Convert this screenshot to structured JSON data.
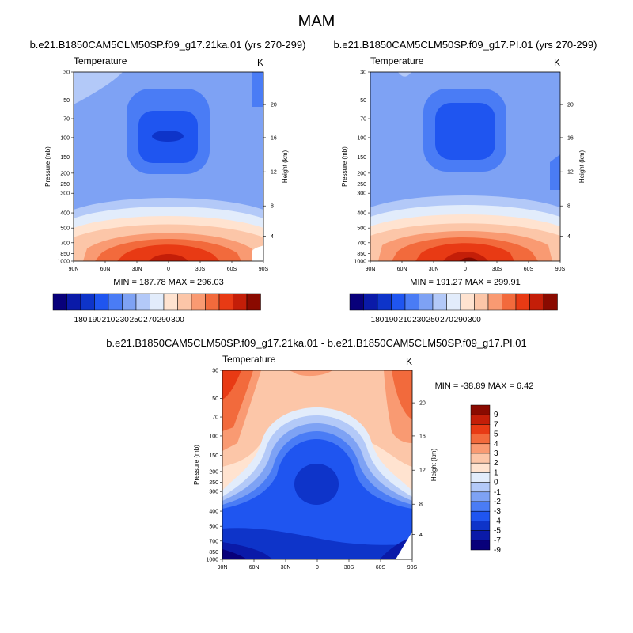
{
  "figure": {
    "main_title": "MAM"
  },
  "palettes": {
    "abs": [
      "#08007a",
      "#0a1aa8",
      "#0e34c9",
      "#1f55f0",
      "#4a7cf5",
      "#7ea2f4",
      "#b3c9f8",
      "#e2ecfb",
      "#ffe3d0",
      "#fcc6a8",
      "#f99a72",
      "#f26a3c",
      "#e83a14",
      "#c41e08",
      "#8a0a00"
    ],
    "diff": [
      "#08007a",
      "#0a1aa8",
      "#0e34c9",
      "#1f55f0",
      "#4a7cf5",
      "#7ea2f4",
      "#b3c9f8",
      "#e2ecfb",
      "#ffe3d0",
      "#fcc6a8",
      "#f99a72",
      "#f26a3c",
      "#e83a14",
      "#c41e08",
      "#8a0a00"
    ]
  },
  "chart_data": [
    {
      "type": "heatmap",
      "id": "panel1",
      "title": "b.e21.B1850CAM5CLM50SP.f09_g17.21ka.01 (yrs 270-299)",
      "left_label": "Temperature",
      "units": "K",
      "xlabel": "",
      "ylabel": "Pressure (mb)",
      "right_axis_label": "Height (km)",
      "x_ticks": [
        "90N",
        "60N",
        "30N",
        "0",
        "30S",
        "60S",
        "90S"
      ],
      "y_ticks": [
        "30",
        "50",
        "70",
        "100",
        "150",
        "200",
        "250",
        "300",
        "400",
        "500",
        "700",
        "850",
        "1000"
      ],
      "height_ticks": [
        "20",
        "16",
        "12",
        "8",
        "4"
      ],
      "stats": "MIN = 187.78   MAX = 296.03",
      "colorbar_labels": [
        "180",
        "190",
        "210",
        "230",
        "250",
        "270",
        "290",
        "300"
      ],
      "value_range": [
        187.78,
        296.03
      ],
      "colormap": "blue-white-red"
    },
    {
      "type": "heatmap",
      "id": "panel2",
      "title": "b.e21.B1850CAM5CLM50SP.f09_g17.PI.01 (yrs 270-299)",
      "left_label": "Temperature",
      "units": "K",
      "xlabel": "",
      "ylabel": "Pressure (mb)",
      "right_axis_label": "Height (km)",
      "x_ticks": [
        "90N",
        "60N",
        "30N",
        "0",
        "30S",
        "60S",
        "90S"
      ],
      "y_ticks": [
        "30",
        "50",
        "70",
        "100",
        "150",
        "200",
        "250",
        "300",
        "400",
        "500",
        "700",
        "850",
        "1000"
      ],
      "height_ticks": [
        "20",
        "16",
        "12",
        "8",
        "4"
      ],
      "stats": "MIN = 191.27   MAX = 299.91",
      "colorbar_labels": [
        "180",
        "190",
        "210",
        "230",
        "250",
        "270",
        "290",
        "300"
      ],
      "value_range": [
        191.27,
        299.91
      ],
      "colormap": "blue-white-red"
    },
    {
      "type": "heatmap",
      "id": "panel3",
      "title": "b.e21.B1850CAM5CLM50SP.f09_g17.21ka.01 - b.e21.B1850CAM5CLM50SP.f09_g17.PI.01",
      "left_label": "Temperature",
      "units": "K",
      "xlabel": "",
      "ylabel": "Pressure (mb)",
      "right_axis_label": "Height (km)",
      "x_ticks": [
        "90N",
        "60N",
        "30N",
        "0",
        "30S",
        "60S",
        "90S"
      ],
      "y_ticks": [
        "30",
        "50",
        "70",
        "100",
        "150",
        "200",
        "250",
        "300",
        "400",
        "500",
        "700",
        "850",
        "1000"
      ],
      "height_ticks": [
        "20",
        "16",
        "12",
        "8",
        "4"
      ],
      "stats": "MIN = -38.89   MAX =   6.42",
      "colorbar_labels": [
        "9",
        "7",
        "5",
        "4",
        "3",
        "2",
        "1",
        "0",
        "-1",
        "-2",
        "-3",
        "-4",
        "-5",
        "-7",
        "-9"
      ],
      "value_range": [
        -38.89,
        6.42
      ],
      "colormap": "blue-white-red"
    }
  ]
}
